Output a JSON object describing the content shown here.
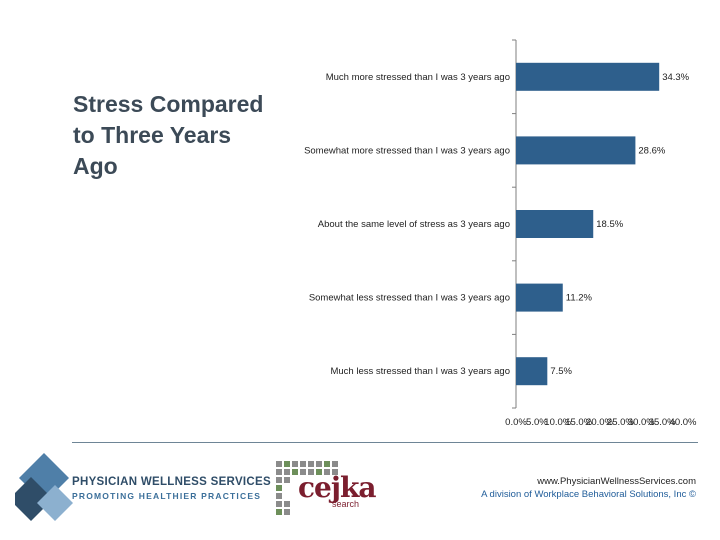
{
  "slide": {
    "title": "Stress Compared to Three Years Ago"
  },
  "chart_data": {
    "type": "bar",
    "orientation": "horizontal",
    "title": "Stress Compared to Three Years Ago",
    "categories": [
      "Much more stressed than I was 3 years ago",
      "Somewhat more stressed than I was 3 years ago",
      "About the same level of stress as 3 years ago",
      "Somewhat less stressed than I was 3 years ago",
      "Much less stressed than I was 3 years ago"
    ],
    "values": [
      34.3,
      28.6,
      18.5,
      11.2,
      7.5
    ],
    "value_labels": [
      "34.3%",
      "28.6%",
      "18.5%",
      "11.2%",
      "7.5%"
    ],
    "xlim": [
      0,
      40
    ],
    "xticks": [
      0,
      5,
      10,
      15,
      20,
      25,
      30,
      35,
      40
    ],
    "xtick_labels": [
      "0.0%",
      "5.0%",
      "10.0%",
      "15.0%",
      "20.0%",
      "25.0%",
      "30.0%",
      "35.0%",
      "40.0%"
    ],
    "bar_color": "#2e5f8c",
    "axis_color": "#7f7f7f"
  },
  "footer": {
    "logo_line1": "PHYSICIAN WELLNESS SERVICES",
    "logo_line2": "PROMOTING HEALTHIER PRACTICES",
    "partner_logo": "cejka",
    "partner_sub": "search",
    "url": "www.PhysicianWellnessServices.com",
    "division": "A division of Workplace Behavioral Solutions, Inc ©"
  }
}
